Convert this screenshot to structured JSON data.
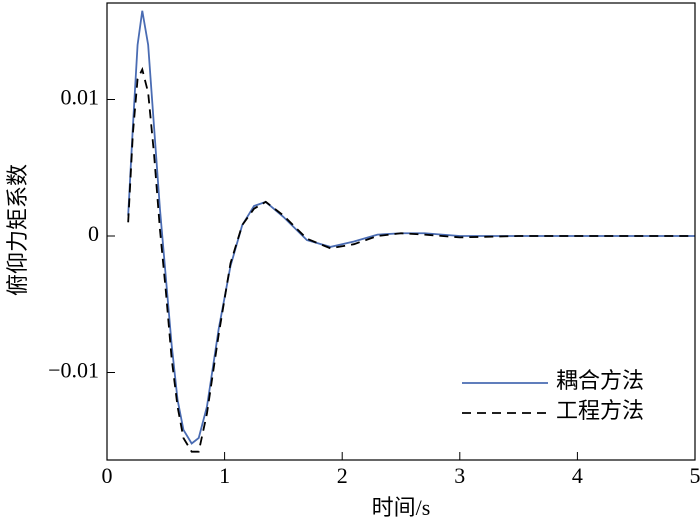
{
  "chart_data": {
    "type": "line",
    "xlabel": "时间/s",
    "ylabel": "俯仰力矩系数",
    "x": [
      0.18,
      0.22,
      0.26,
      0.3,
      0.35,
      0.4,
      0.45,
      0.5,
      0.55,
      0.6,
      0.65,
      0.72,
      0.78,
      0.85,
      0.95,
      1.05,
      1.15,
      1.25,
      1.35,
      1.5,
      1.7,
      1.9,
      2.1,
      2.3,
      2.5,
      2.7,
      3.0,
      3.5,
      4,
      4.5,
      5
    ],
    "series": [
      {
        "name": "耦合方法",
        "color": "#4a6cb3",
        "dash": "solid",
        "values": [
          0.0015,
          0.008,
          0.014,
          0.0165,
          0.014,
          0.008,
          0.002,
          -0.003,
          -0.008,
          -0.012,
          -0.0142,
          -0.0152,
          -0.0148,
          -0.0125,
          -0.0068,
          -0.0022,
          0.0008,
          0.0022,
          0.0025,
          0.0014,
          -0.0003,
          -0.0008,
          -0.0004,
          0.0001,
          0.0002,
          0.0002,
          0,
          0,
          0,
          0,
          0
        ]
      },
      {
        "name": "工程方法",
        "color": "#000000",
        "dash": "dashed",
        "values": [
          0.001,
          0.0075,
          0.0115,
          0.0122,
          0.0105,
          0.006,
          0.0005,
          -0.004,
          -0.009,
          -0.0125,
          -0.0148,
          -0.0158,
          -0.0158,
          -0.013,
          -0.0072,
          -0.002,
          0.0008,
          0.002,
          0.0025,
          0.0015,
          -0.0002,
          -0.0009,
          -0.0006,
          0,
          0.0002,
          0.0001,
          -0.0001,
          0,
          0,
          0,
          0
        ]
      }
    ],
    "xlim": [
      0,
      5
    ],
    "xticks": [
      0,
      1,
      2,
      3,
      4,
      5
    ],
    "ylim": [
      -0.01641,
      0.01707
    ],
    "yticks": [
      {
        "value": -0.01,
        "label": "−0.01"
      },
      0,
      0.01
    ],
    "legend": "lower right"
  }
}
